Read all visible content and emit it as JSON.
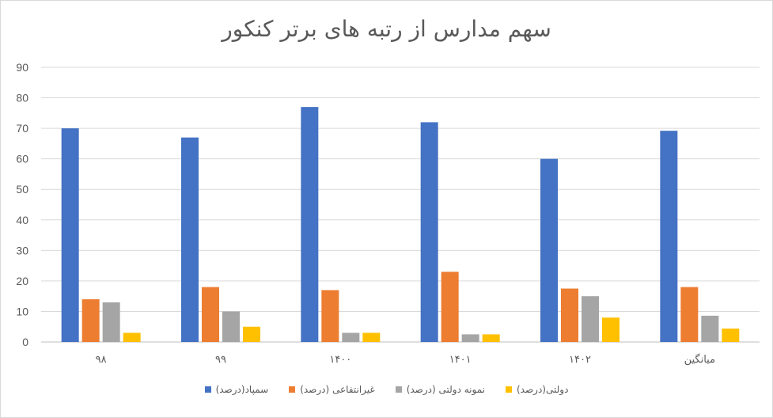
{
  "chart_data": {
    "type": "bar",
    "title": "سهم مدارس از رتبه های برتر کنکور",
    "xlabel": "",
    "ylabel": "",
    "ylim": [
      0,
      90
    ],
    "yticks": [
      0,
      10,
      20,
      30,
      40,
      50,
      60,
      70,
      80,
      90
    ],
    "grid": true,
    "legend_position": "bottom",
    "categories": [
      "۹۸",
      "۹۹",
      "۱۴۰۰",
      "۱۴۰۱",
      "۱۴۰۲",
      "میانگین"
    ],
    "series": [
      {
        "name": "سمپاد(درصد)",
        "color": "#4472c4",
        "values": [
          70,
          67,
          77,
          72,
          60,
          69.2
        ]
      },
      {
        "name": "غیرانتفاعی (درصد)",
        "color": "#ed7d31",
        "values": [
          14,
          18,
          17,
          23,
          17.5,
          18
        ]
      },
      {
        "name": "نمونه دولتی (درصد)",
        "color": "#a5a5a5",
        "values": [
          13,
          10,
          3,
          2.5,
          15,
          8.6
        ]
      },
      {
        "name": "دولتی(درصد)",
        "color": "#ffc000",
        "values": [
          3,
          5,
          3,
          2.5,
          8,
          4.4
        ]
      }
    ]
  }
}
